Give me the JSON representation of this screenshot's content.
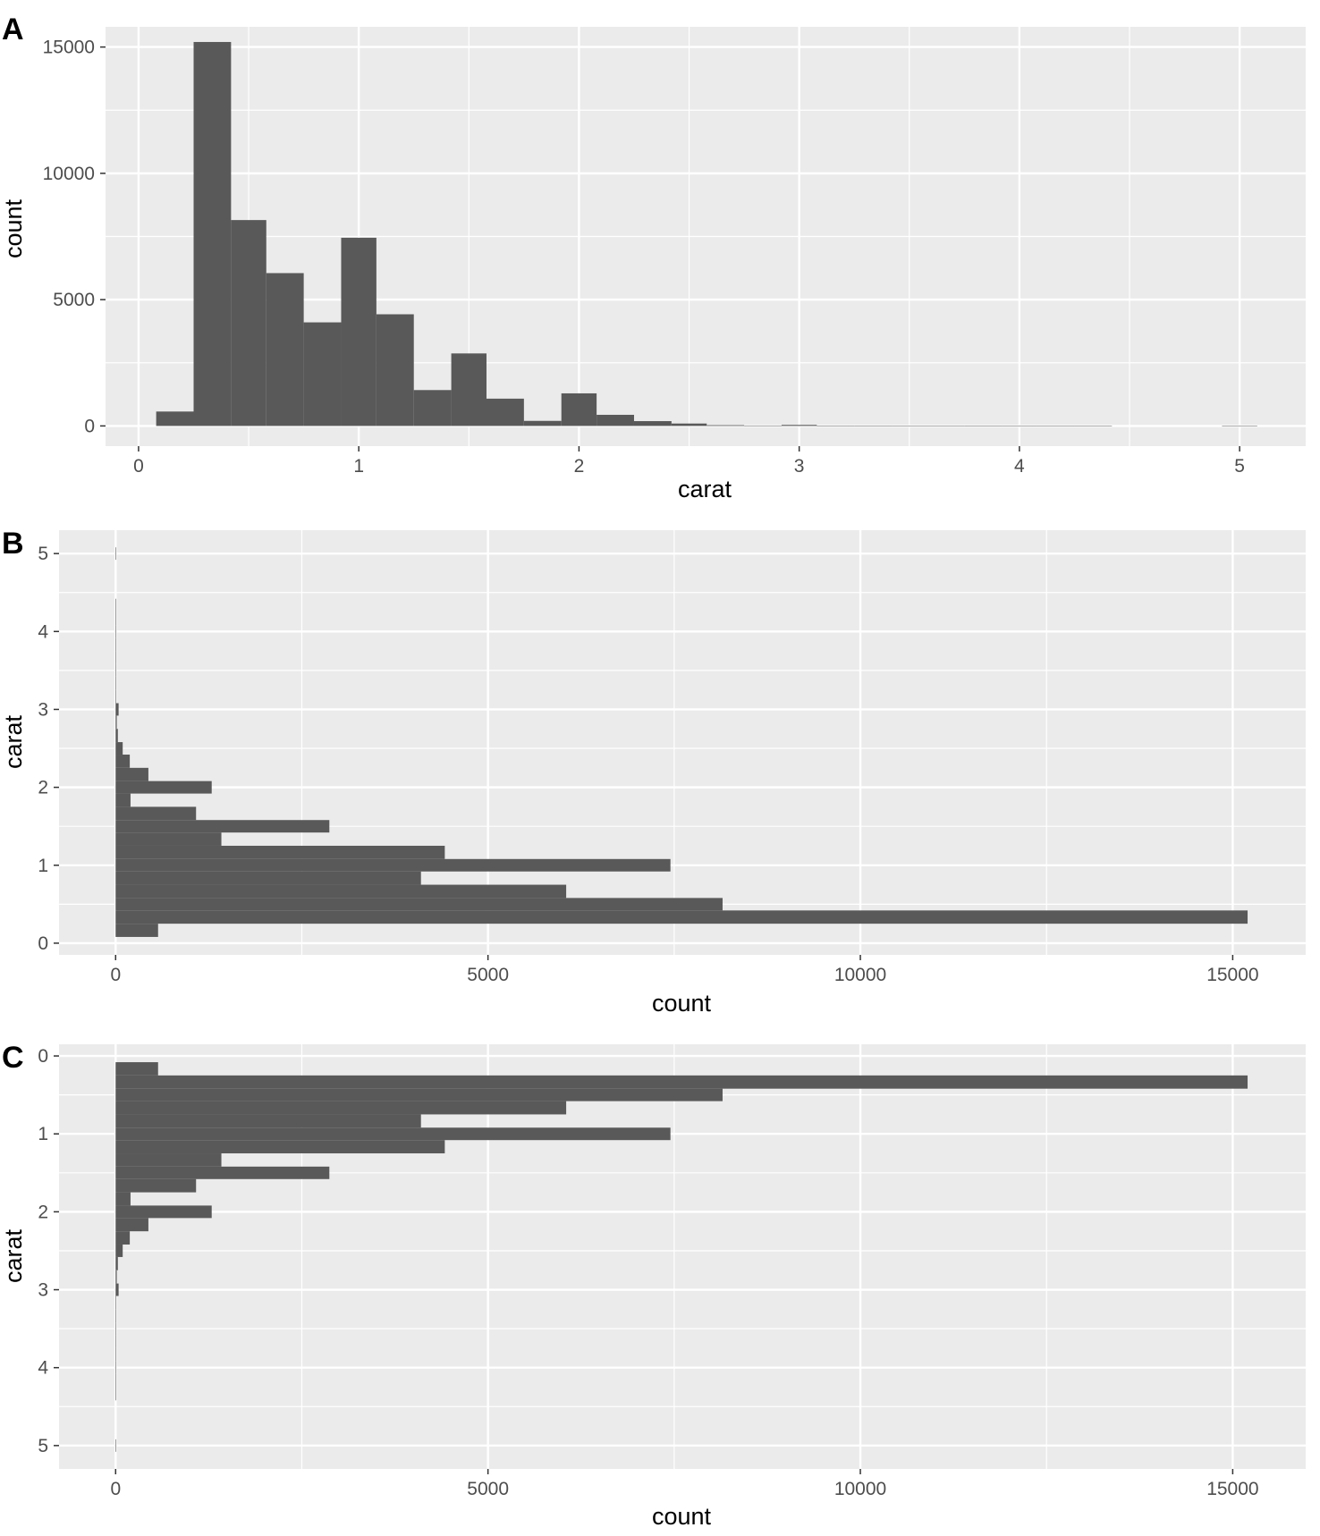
{
  "chart_data": [
    {
      "panel": "A",
      "type": "bar",
      "orientation": "vertical",
      "xlabel": "carat",
      "ylabel": "count",
      "x_ticks": [
        "0",
        "1",
        "2",
        "3",
        "4",
        "5"
      ],
      "y_ticks": [
        "0",
        "5000",
        "10000",
        "15000"
      ],
      "xlim": [
        -0.15,
        5.3
      ],
      "ylim": [
        -800,
        15800
      ],
      "grid": true,
      "color": "#595959",
      "bin_width": 0.1667,
      "bins": [
        {
          "x0": 0.08,
          "x1": 0.25,
          "count": 570
        },
        {
          "x0": 0.25,
          "x1": 0.42,
          "count": 15200
        },
        {
          "x0": 0.42,
          "x1": 0.58,
          "count": 8150
        },
        {
          "x0": 0.58,
          "x1": 0.75,
          "count": 6050
        },
        {
          "x0": 0.75,
          "x1": 0.92,
          "count": 4100
        },
        {
          "x0": 0.92,
          "x1": 1.08,
          "count": 7450
        },
        {
          "x0": 1.08,
          "x1": 1.25,
          "count": 4420
        },
        {
          "x0": 1.25,
          "x1": 1.42,
          "count": 1420
        },
        {
          "x0": 1.42,
          "x1": 1.58,
          "count": 2870
        },
        {
          "x0": 1.58,
          "x1": 1.75,
          "count": 1080
        },
        {
          "x0": 1.75,
          "x1": 1.92,
          "count": 200
        },
        {
          "x0": 1.92,
          "x1": 2.08,
          "count": 1290
        },
        {
          "x0": 2.08,
          "x1": 2.25,
          "count": 440
        },
        {
          "x0": 2.25,
          "x1": 2.42,
          "count": 190
        },
        {
          "x0": 2.42,
          "x1": 2.58,
          "count": 95
        },
        {
          "x0": 2.58,
          "x1": 2.75,
          "count": 30
        },
        {
          "x0": 2.75,
          "x1": 2.92,
          "count": 15
        },
        {
          "x0": 2.92,
          "x1": 3.08,
          "count": 40
        },
        {
          "x0": 3.08,
          "x1": 3.25,
          "count": 5
        },
        {
          "x0": 3.25,
          "x1": 3.42,
          "count": 3
        },
        {
          "x0": 3.42,
          "x1": 3.58,
          "count": 2
        },
        {
          "x0": 3.58,
          "x1": 3.75,
          "count": 2
        },
        {
          "x0": 3.75,
          "x1": 3.92,
          "count": 3
        },
        {
          "x0": 3.92,
          "x1": 4.08,
          "count": 4
        },
        {
          "x0": 4.08,
          "x1": 4.25,
          "count": 2
        },
        {
          "x0": 4.25,
          "x1": 4.42,
          "count": 1
        },
        {
          "x0": 4.42,
          "x1": 4.58,
          "count": 0
        },
        {
          "x0": 4.58,
          "x1": 4.75,
          "count": 0
        },
        {
          "x0": 4.75,
          "x1": 4.92,
          "count": 0
        },
        {
          "x0": 4.92,
          "x1": 5.08,
          "count": 1
        }
      ]
    },
    {
      "panel": "B",
      "type": "bar",
      "orientation": "horizontal",
      "xlabel": "count",
      "ylabel": "carat",
      "x_ticks": [
        "0",
        "5000",
        "10000",
        "15000"
      ],
      "y_ticks": [
        "0",
        "1",
        "2",
        "3",
        "4",
        "5"
      ],
      "xlim": [
        -760,
        15980
      ],
      "ylim": [
        -0.15,
        5.3
      ],
      "y_reversed": false,
      "grid": true,
      "color": "#595959",
      "bins_from": "A"
    },
    {
      "panel": "C",
      "type": "bar",
      "orientation": "horizontal",
      "xlabel": "count",
      "ylabel": "carat",
      "x_ticks": [
        "0",
        "5000",
        "10000",
        "15000"
      ],
      "y_ticks": [
        "0",
        "1",
        "2",
        "3",
        "4",
        "5"
      ],
      "xlim": [
        -760,
        15980
      ],
      "ylim": [
        -0.15,
        5.3
      ],
      "y_reversed": true,
      "grid": true,
      "color": "#595959",
      "bins_from": "A"
    }
  ]
}
